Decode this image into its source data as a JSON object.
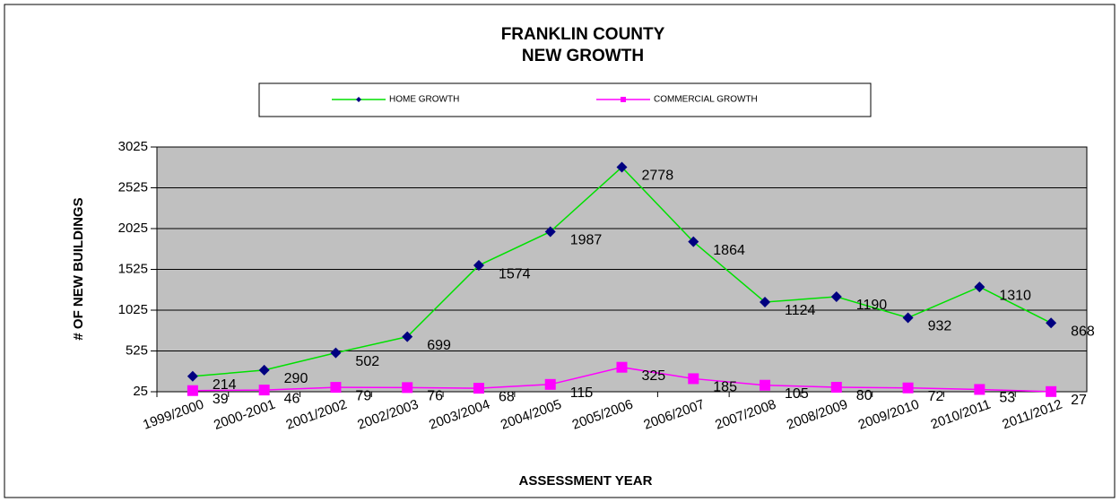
{
  "chart_data": {
    "type": "line",
    "title": [
      "FRANKLIN COUNTY",
      "NEW GROWTH"
    ],
    "x_label": "ASSESSMENT YEAR",
    "y_label": "# OF NEW BUILDINGS",
    "categories": [
      "1999/2000",
      "2000-2001",
      "2001/2002",
      "2002/2003",
      "2003/2004",
      "2004/2005",
      "2005/2006",
      "2006/2007",
      "2007/2008",
      "2008/2009",
      "2009/2010",
      "2010/2011",
      "2011/2012"
    ],
    "series": [
      {
        "name": "HOME GROWTH",
        "color": "#00e000",
        "marker": "diamond",
        "marker_color": "#000080",
        "values": [
          214,
          290,
          502,
          699,
          1574,
          1987,
          2778,
          1864,
          1124,
          1190,
          932,
          1310,
          868
        ]
      },
      {
        "name": "COMMERCIAL GROWTH",
        "color": "#ff00ff",
        "marker": "square",
        "marker_color": "#ff00ff",
        "values": [
          39,
          46,
          79,
          76,
          68,
          115,
          325,
          185,
          105,
          80,
          72,
          53,
          27
        ]
      }
    ],
    "ylim": [
      25,
      3025
    ],
    "yticks": [
      25,
      525,
      1025,
      1525,
      2025,
      2525,
      3025
    ],
    "grid": true,
    "legend": "top",
    "plot_background": "#c0c0c0"
  }
}
